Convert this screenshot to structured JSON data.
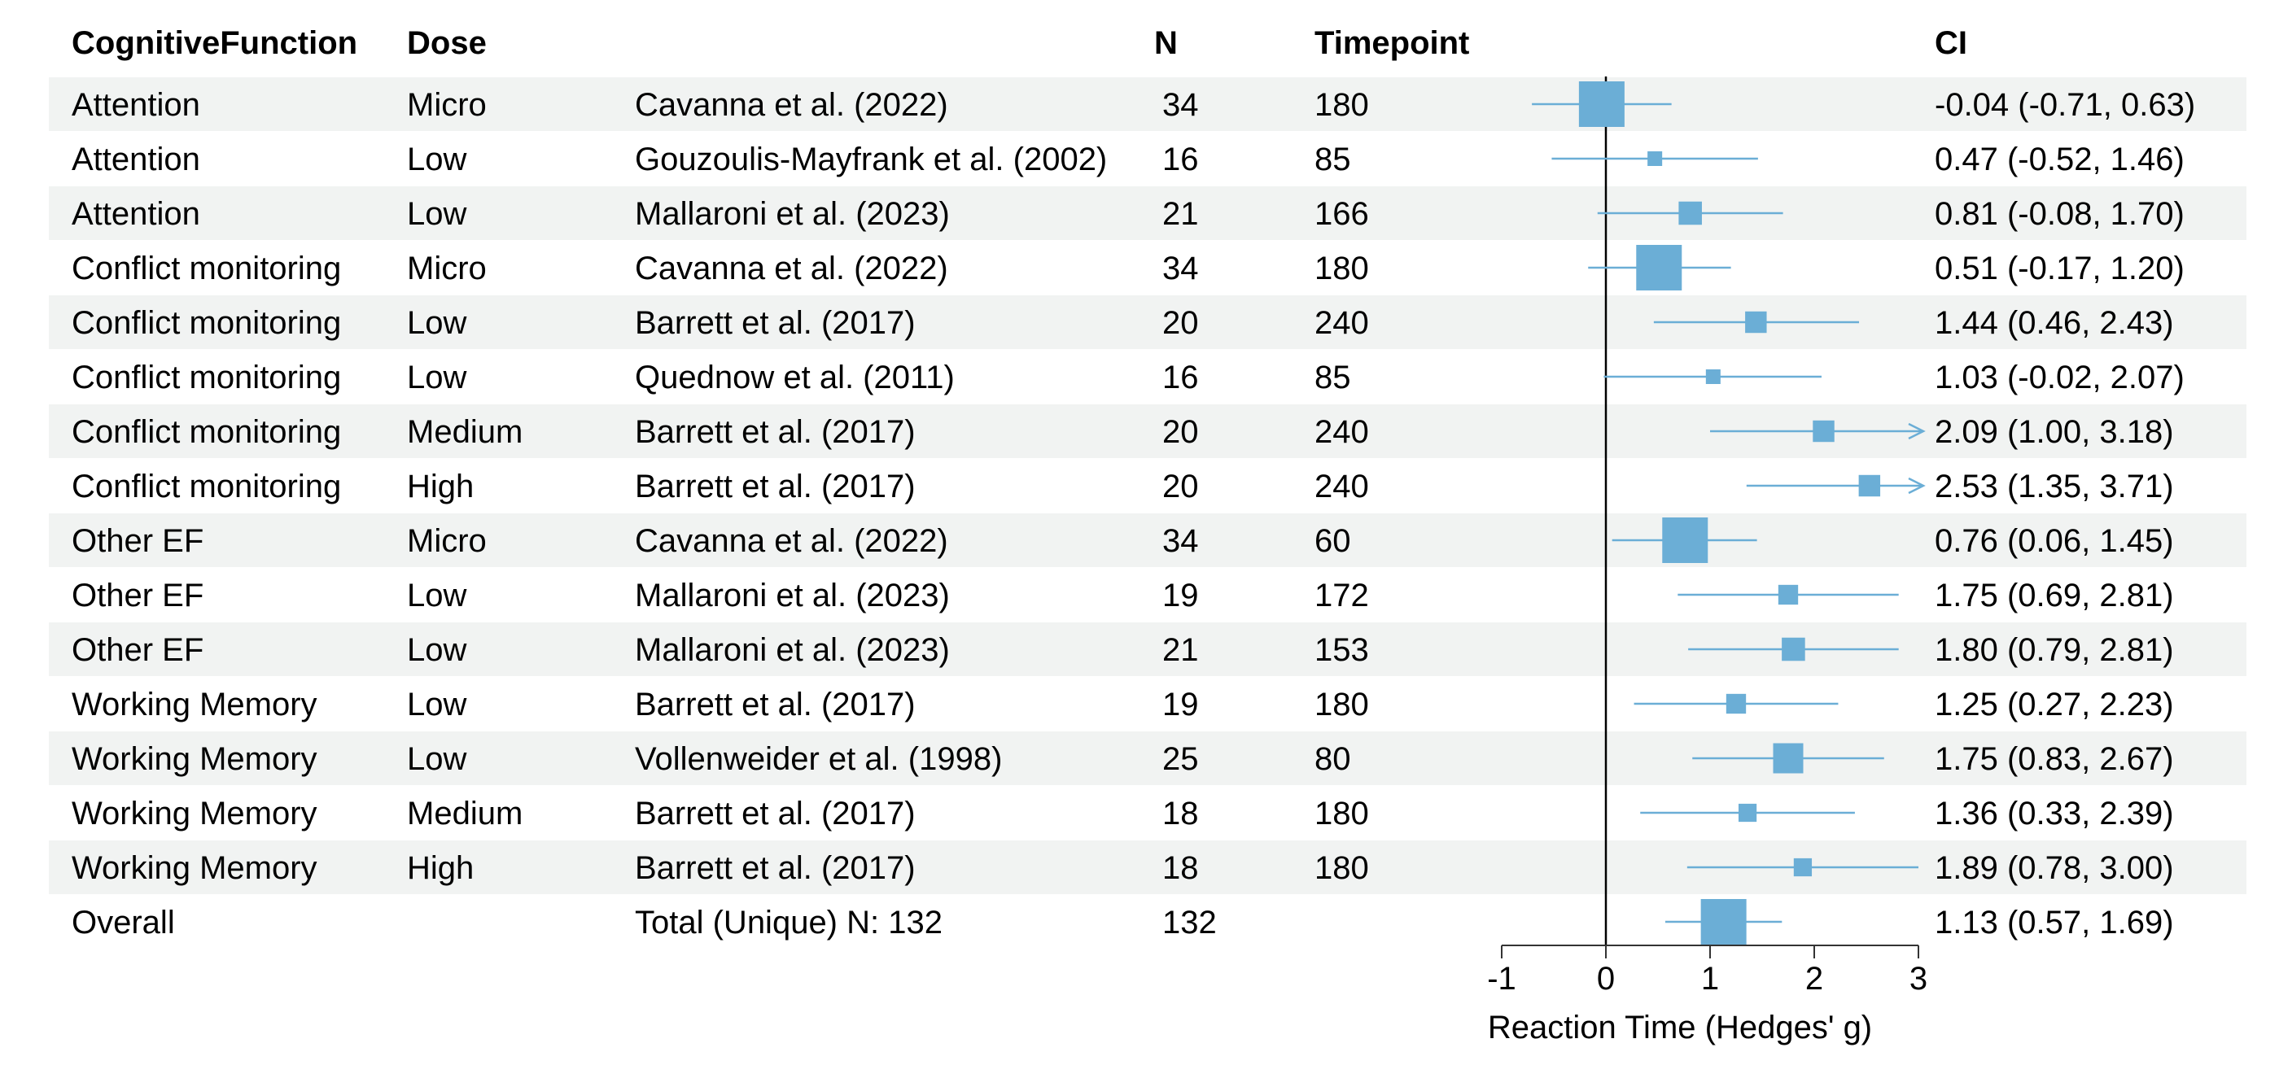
{
  "chart_data": {
    "type": "forest",
    "xlabel": "Reaction Time (Hedges' g)",
    "xlim": [
      -1,
      3
    ],
    "xticks": [
      "-1",
      "0",
      "1",
      "2",
      "3"
    ],
    "tick_values": [
      -1,
      0,
      1,
      2,
      3
    ],
    "reference_line": 0,
    "marker_color": "#6BAED6",
    "band_color": "#F1F3F2",
    "columns": {
      "function": "CognitiveFunction",
      "dose": "Dose",
      "study": "",
      "n": "N",
      "timepoint": "Timepoint",
      "ci": "CI"
    },
    "rows": [
      {
        "function": "Attention",
        "dose": "Micro",
        "study": "Cavanna et al. (2022)",
        "n": "34",
        "timepoint": "180",
        "ci": "-0.04 (-0.71, 0.63)",
        "est": -0.04,
        "lo": -0.71,
        "hi": 0.63,
        "weight": 34
      },
      {
        "function": "Attention",
        "dose": "Low",
        "study": "Gouzoulis-Mayfrank et al. (2002)",
        "n": "16",
        "timepoint": "85",
        "ci": "0.47 (-0.52, 1.46)",
        "est": 0.47,
        "lo": -0.52,
        "hi": 1.46,
        "weight": 16
      },
      {
        "function": "Attention",
        "dose": "Low",
        "study": "Mallaroni et al. (2023)",
        "n": "21",
        "timepoint": "166",
        "ci": "0.81 (-0.08, 1.70)",
        "est": 0.81,
        "lo": -0.08,
        "hi": 1.7,
        "weight": 21
      },
      {
        "function": "Conflict monitoring",
        "dose": "Micro",
        "study": "Cavanna et al. (2022)",
        "n": "34",
        "timepoint": "180",
        "ci": "0.51 (-0.17, 1.20)",
        "est": 0.51,
        "lo": -0.17,
        "hi": 1.2,
        "weight": 34
      },
      {
        "function": "Conflict monitoring",
        "dose": "Low",
        "study": "Barrett et al. (2017)",
        "n": "20",
        "timepoint": "240",
        "ci": "1.44 (0.46, 2.43)",
        "est": 1.44,
        "lo": 0.46,
        "hi": 2.43,
        "weight": 20
      },
      {
        "function": "Conflict monitoring",
        "dose": "Low",
        "study": "Quednow et al. (2011)",
        "n": "16",
        "timepoint": "85",
        "ci": "1.03 (-0.02, 2.07)",
        "est": 1.03,
        "lo": -0.02,
        "hi": 2.07,
        "weight": 16
      },
      {
        "function": "Conflict monitoring",
        "dose": "Medium",
        "study": "Barrett et al. (2017)",
        "n": "20",
        "timepoint": "240",
        "ci": "2.09 (1.00, 3.18)",
        "est": 2.09,
        "lo": 1.0,
        "hi": 3.18,
        "weight": 20
      },
      {
        "function": "Conflict monitoring",
        "dose": "High",
        "study": "Barrett et al. (2017)",
        "n": "20",
        "timepoint": "240",
        "ci": "2.53 (1.35, 3.71)",
        "est": 2.53,
        "lo": 1.35,
        "hi": 3.71,
        "weight": 20
      },
      {
        "function": "Other EF",
        "dose": "Micro",
        "study": "Cavanna et al. (2022)",
        "n": "34",
        "timepoint": "60",
        "ci": "0.76 (0.06, 1.45)",
        "est": 0.76,
        "lo": 0.06,
        "hi": 1.45,
        "weight": 34
      },
      {
        "function": "Other EF",
        "dose": "Low",
        "study": "Mallaroni et al. (2023)",
        "n": "19",
        "timepoint": "172",
        "ci": "1.75 (0.69, 2.81)",
        "est": 1.75,
        "lo": 0.69,
        "hi": 2.81,
        "weight": 19
      },
      {
        "function": "Other EF",
        "dose": "Low",
        "study": "Mallaroni et al. (2023)",
        "n": "21",
        "timepoint": "153",
        "ci": "1.80 (0.79, 2.81)",
        "est": 1.8,
        "lo": 0.79,
        "hi": 2.81,
        "weight": 21
      },
      {
        "function": "Working Memory",
        "dose": "Low",
        "study": "Barrett et al. (2017)",
        "n": "19",
        "timepoint": "180",
        "ci": "1.25 (0.27, 2.23)",
        "est": 1.25,
        "lo": 0.27,
        "hi": 2.23,
        "weight": 19
      },
      {
        "function": "Working Memory",
        "dose": "Low",
        "study": "Vollenweider et al. (1998)",
        "n": "25",
        "timepoint": "80",
        "ci": "1.75 (0.83, 2.67)",
        "est": 1.75,
        "lo": 0.83,
        "hi": 2.67,
        "weight": 25
      },
      {
        "function": "Working Memory",
        "dose": "Medium",
        "study": "Barrett et al. (2017)",
        "n": "18",
        "timepoint": "180",
        "ci": "1.36 (0.33, 2.39)",
        "est": 1.36,
        "lo": 0.33,
        "hi": 2.39,
        "weight": 18
      },
      {
        "function": "Working Memory",
        "dose": "High",
        "study": "Barrett et al. (2017)",
        "n": "18",
        "timepoint": "180",
        "ci": "1.89 (0.78, 3.00)",
        "est": 1.89,
        "lo": 0.78,
        "hi": 3.0,
        "weight": 18
      }
    ],
    "overall": {
      "function": "Overall",
      "dose": "",
      "study": "Total (Unique) N: 132",
      "n": "132",
      "timepoint": "",
      "ci": "1.13 (0.57, 1.69)",
      "est": 1.13,
      "lo": 0.57,
      "hi": 1.69
    }
  }
}
